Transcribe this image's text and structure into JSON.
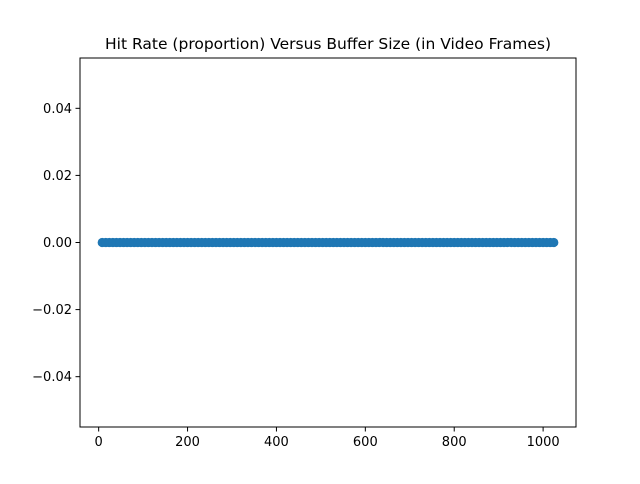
{
  "chart_data": {
    "type": "scatter",
    "title": "Hit Rate (proportion) Versus Buffer Size (in Video Frames)",
    "xlabel": "",
    "ylabel": "",
    "xlim": [
      -42,
      1074
    ],
    "ylim": [
      -0.055,
      0.055
    ],
    "xticks": [
      0,
      200,
      400,
      600,
      800,
      1000
    ],
    "xtick_labels": [
      "0",
      "200",
      "400",
      "600",
      "800",
      "1000"
    ],
    "yticks": [
      -0.04,
      -0.02,
      0.0,
      0.02,
      0.04
    ],
    "ytick_labels": [
      "−0.04",
      "−0.02",
      "0.00",
      "0.02",
      "0.04"
    ],
    "grid": false,
    "legend": "none",
    "marker_color": "#1f77b4",
    "series": [
      {
        "x_start": 8,
        "x_end": 1024,
        "x_step": 8,
        "y_constant": 0
      }
    ]
  }
}
